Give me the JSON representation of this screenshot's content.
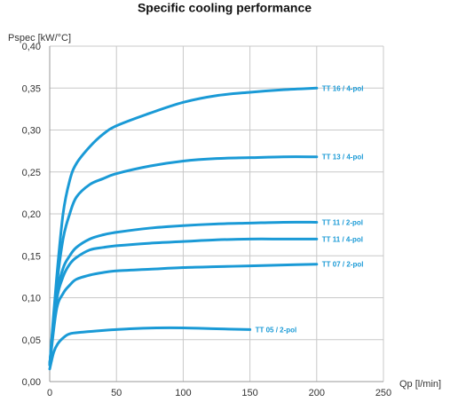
{
  "chart_data": {
    "type": "line",
    "title": "Specific cooling performance",
    "ylabel": "Pspec [kW/°C]",
    "xlabel": "Qp [l/min]",
    "xlim": [
      0,
      250
    ],
    "ylim": [
      0,
      0.4
    ],
    "x_ticks": [
      "0",
      "50",
      "100",
      "150",
      "200",
      "250"
    ],
    "y_ticks": [
      "0.00",
      "0.05",
      "0.10",
      "0.15",
      "0.20",
      "0.25",
      "0.30",
      "0.35",
      "0.40"
    ],
    "grid": true,
    "series_color": "#1a9ad6",
    "series": [
      {
        "name": "TT 16 / 4-pol",
        "x": [
          0,
          5,
          10,
          15,
          20,
          30,
          40,
          50,
          75,
          100,
          125,
          150,
          175,
          200
        ],
        "y": [
          0.02,
          0.12,
          0.2,
          0.24,
          0.26,
          0.28,
          0.295,
          0.305,
          0.32,
          0.333,
          0.341,
          0.345,
          0.348,
          0.35
        ]
      },
      {
        "name": "TT 13 / 4-pol",
        "x": [
          0,
          5,
          10,
          15,
          20,
          30,
          40,
          50,
          75,
          100,
          125,
          150,
          175,
          200
        ],
        "y": [
          0.02,
          0.11,
          0.17,
          0.2,
          0.22,
          0.235,
          0.242,
          0.248,
          0.257,
          0.263,
          0.266,
          0.267,
          0.268,
          0.268
        ]
      },
      {
        "name": "TT 11 / 2-pol",
        "x": [
          0,
          5,
          10,
          15,
          20,
          30,
          40,
          50,
          75,
          100,
          125,
          150,
          175,
          200
        ],
        "y": [
          0.02,
          0.1,
          0.135,
          0.15,
          0.16,
          0.17,
          0.175,
          0.178,
          0.183,
          0.186,
          0.188,
          0.189,
          0.19,
          0.19
        ]
      },
      {
        "name": "TT 11 / 4-pol",
        "x": [
          0,
          5,
          10,
          15,
          20,
          30,
          40,
          50,
          75,
          100,
          125,
          150,
          175,
          200
        ],
        "y": [
          0.02,
          0.095,
          0.125,
          0.14,
          0.148,
          0.157,
          0.16,
          0.162,
          0.165,
          0.167,
          0.169,
          0.17,
          0.17,
          0.17
        ]
      },
      {
        "name": "TT 07 / 2-pol",
        "x": [
          0,
          5,
          10,
          15,
          20,
          30,
          40,
          50,
          75,
          100,
          125,
          150,
          175,
          200
        ],
        "y": [
          0.02,
          0.085,
          0.105,
          0.115,
          0.122,
          0.127,
          0.13,
          0.132,
          0.134,
          0.136,
          0.137,
          0.138,
          0.139,
          0.14
        ]
      },
      {
        "name": "TT 05 / 2-pol",
        "x": [
          0,
          3,
          6,
          10,
          15,
          25,
          40,
          60,
          80,
          100,
          125,
          150
        ],
        "y": [
          0.015,
          0.035,
          0.045,
          0.052,
          0.057,
          0.059,
          0.061,
          0.063,
          0.064,
          0.064,
          0.063,
          0.062
        ]
      }
    ]
  }
}
